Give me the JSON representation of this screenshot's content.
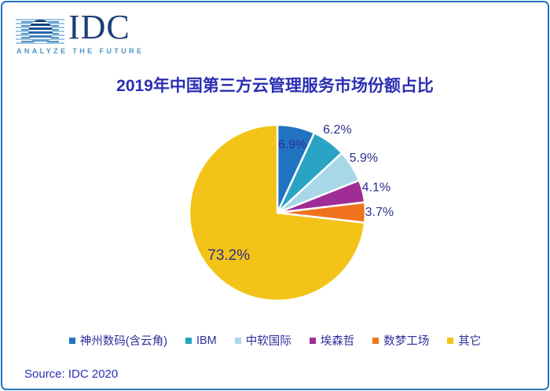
{
  "window": {
    "border_color": "#2277BE",
    "background_color": "#FFFFFF"
  },
  "logo": {
    "name": "IDC",
    "tagline": "ANALYZE THE FUTURE",
    "text_color": "#1D3E75",
    "tagline_color": "#4A96C8"
  },
  "title": {
    "text": "2019年中国第三方云管理服务市场份额占比",
    "color": "#2B2EB3"
  },
  "source": {
    "text": "Source: IDC 2020",
    "color": "#2B2EB3"
  },
  "chart_data": {
    "type": "pie",
    "title": "2019年中国第三方云管理服务市场份额占比",
    "unit": "%",
    "start_angle_deg": 0,
    "direction": "clockwise",
    "legend_position": "bottom",
    "label_color": "#2D2F8E",
    "slice_border_color": "#FFFFFF",
    "center": {
      "x": 350,
      "y": 268
    },
    "radius": 112,
    "series": [
      {
        "name": "神州数码(含云角)",
        "value": 6.9,
        "label": "6.9%",
        "color": "#2173C2",
        "label_position": "inside"
      },
      {
        "name": "IBM",
        "value": 6.2,
        "label": "6.2%",
        "color": "#2AA4C5",
        "label_position": "outside"
      },
      {
        "name": "中软国际",
        "value": 5.9,
        "label": "5.9%",
        "color": "#A8D8E8",
        "label_position": "outside"
      },
      {
        "name": "埃森哲",
        "value": 4.1,
        "label": "4.1%",
        "color": "#A02C96",
        "label_position": "outside"
      },
      {
        "name": "数梦工场",
        "value": 3.7,
        "label": "3.7%",
        "color": "#F1731D",
        "label_position": "outside"
      },
      {
        "name": "其它",
        "value": 73.2,
        "label": "73.2%",
        "color": "#F3C317",
        "label_position": "inside"
      }
    ]
  }
}
